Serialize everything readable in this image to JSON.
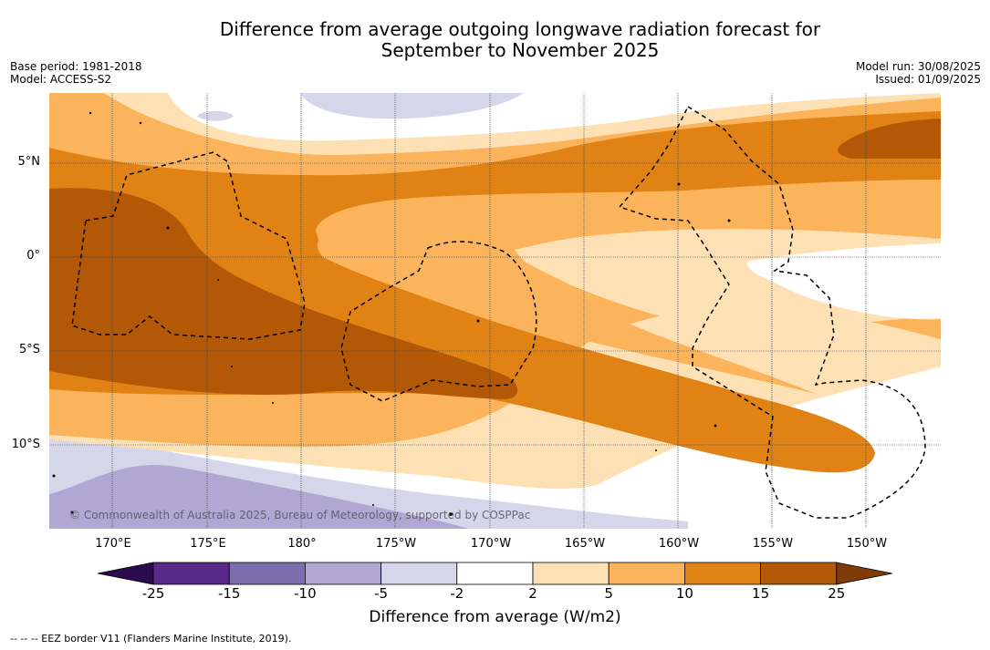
{
  "title_line1": "Difference from average outgoing longwave radiation forecast for",
  "title_line2": "September to November 2025",
  "base_period": "Base period: 1981-2018",
  "model": "Model: ACCESS-S2",
  "model_run": "Model run: 30/08/2025",
  "issued": "Issued: 01/09/2025",
  "lat_labels": [
    "5°N",
    "0°",
    "5°S",
    "10°S"
  ],
  "lon_labels": [
    "170°E",
    "175°E",
    "180°",
    "175°W",
    "170°W",
    "165°W",
    "160°W",
    "155°W",
    "150°W"
  ],
  "copyright": "© Commonwealth of Australia 2025, Bureau of Meteorology, supported by COSPPac",
  "colorbar": {
    "title": "Difference from average (W/m2)",
    "ticks": [
      "-25",
      "-15",
      "-10",
      "-5",
      "-2",
      "2",
      "5",
      "10",
      "15",
      "25"
    ],
    "colors": [
      "#2d0a4e",
      "#5a2a8a",
      "#7b6fb0",
      "#b0a8d2",
      "#d6d6ea",
      "#ffffff",
      "#fde0b4",
      "#fbb45c",
      "#e08214",
      "#b35806",
      "#7f3b08"
    ]
  },
  "footnote": "--  --  -- EEZ border V11 (Flanders Marine Institute, 2019)."
}
